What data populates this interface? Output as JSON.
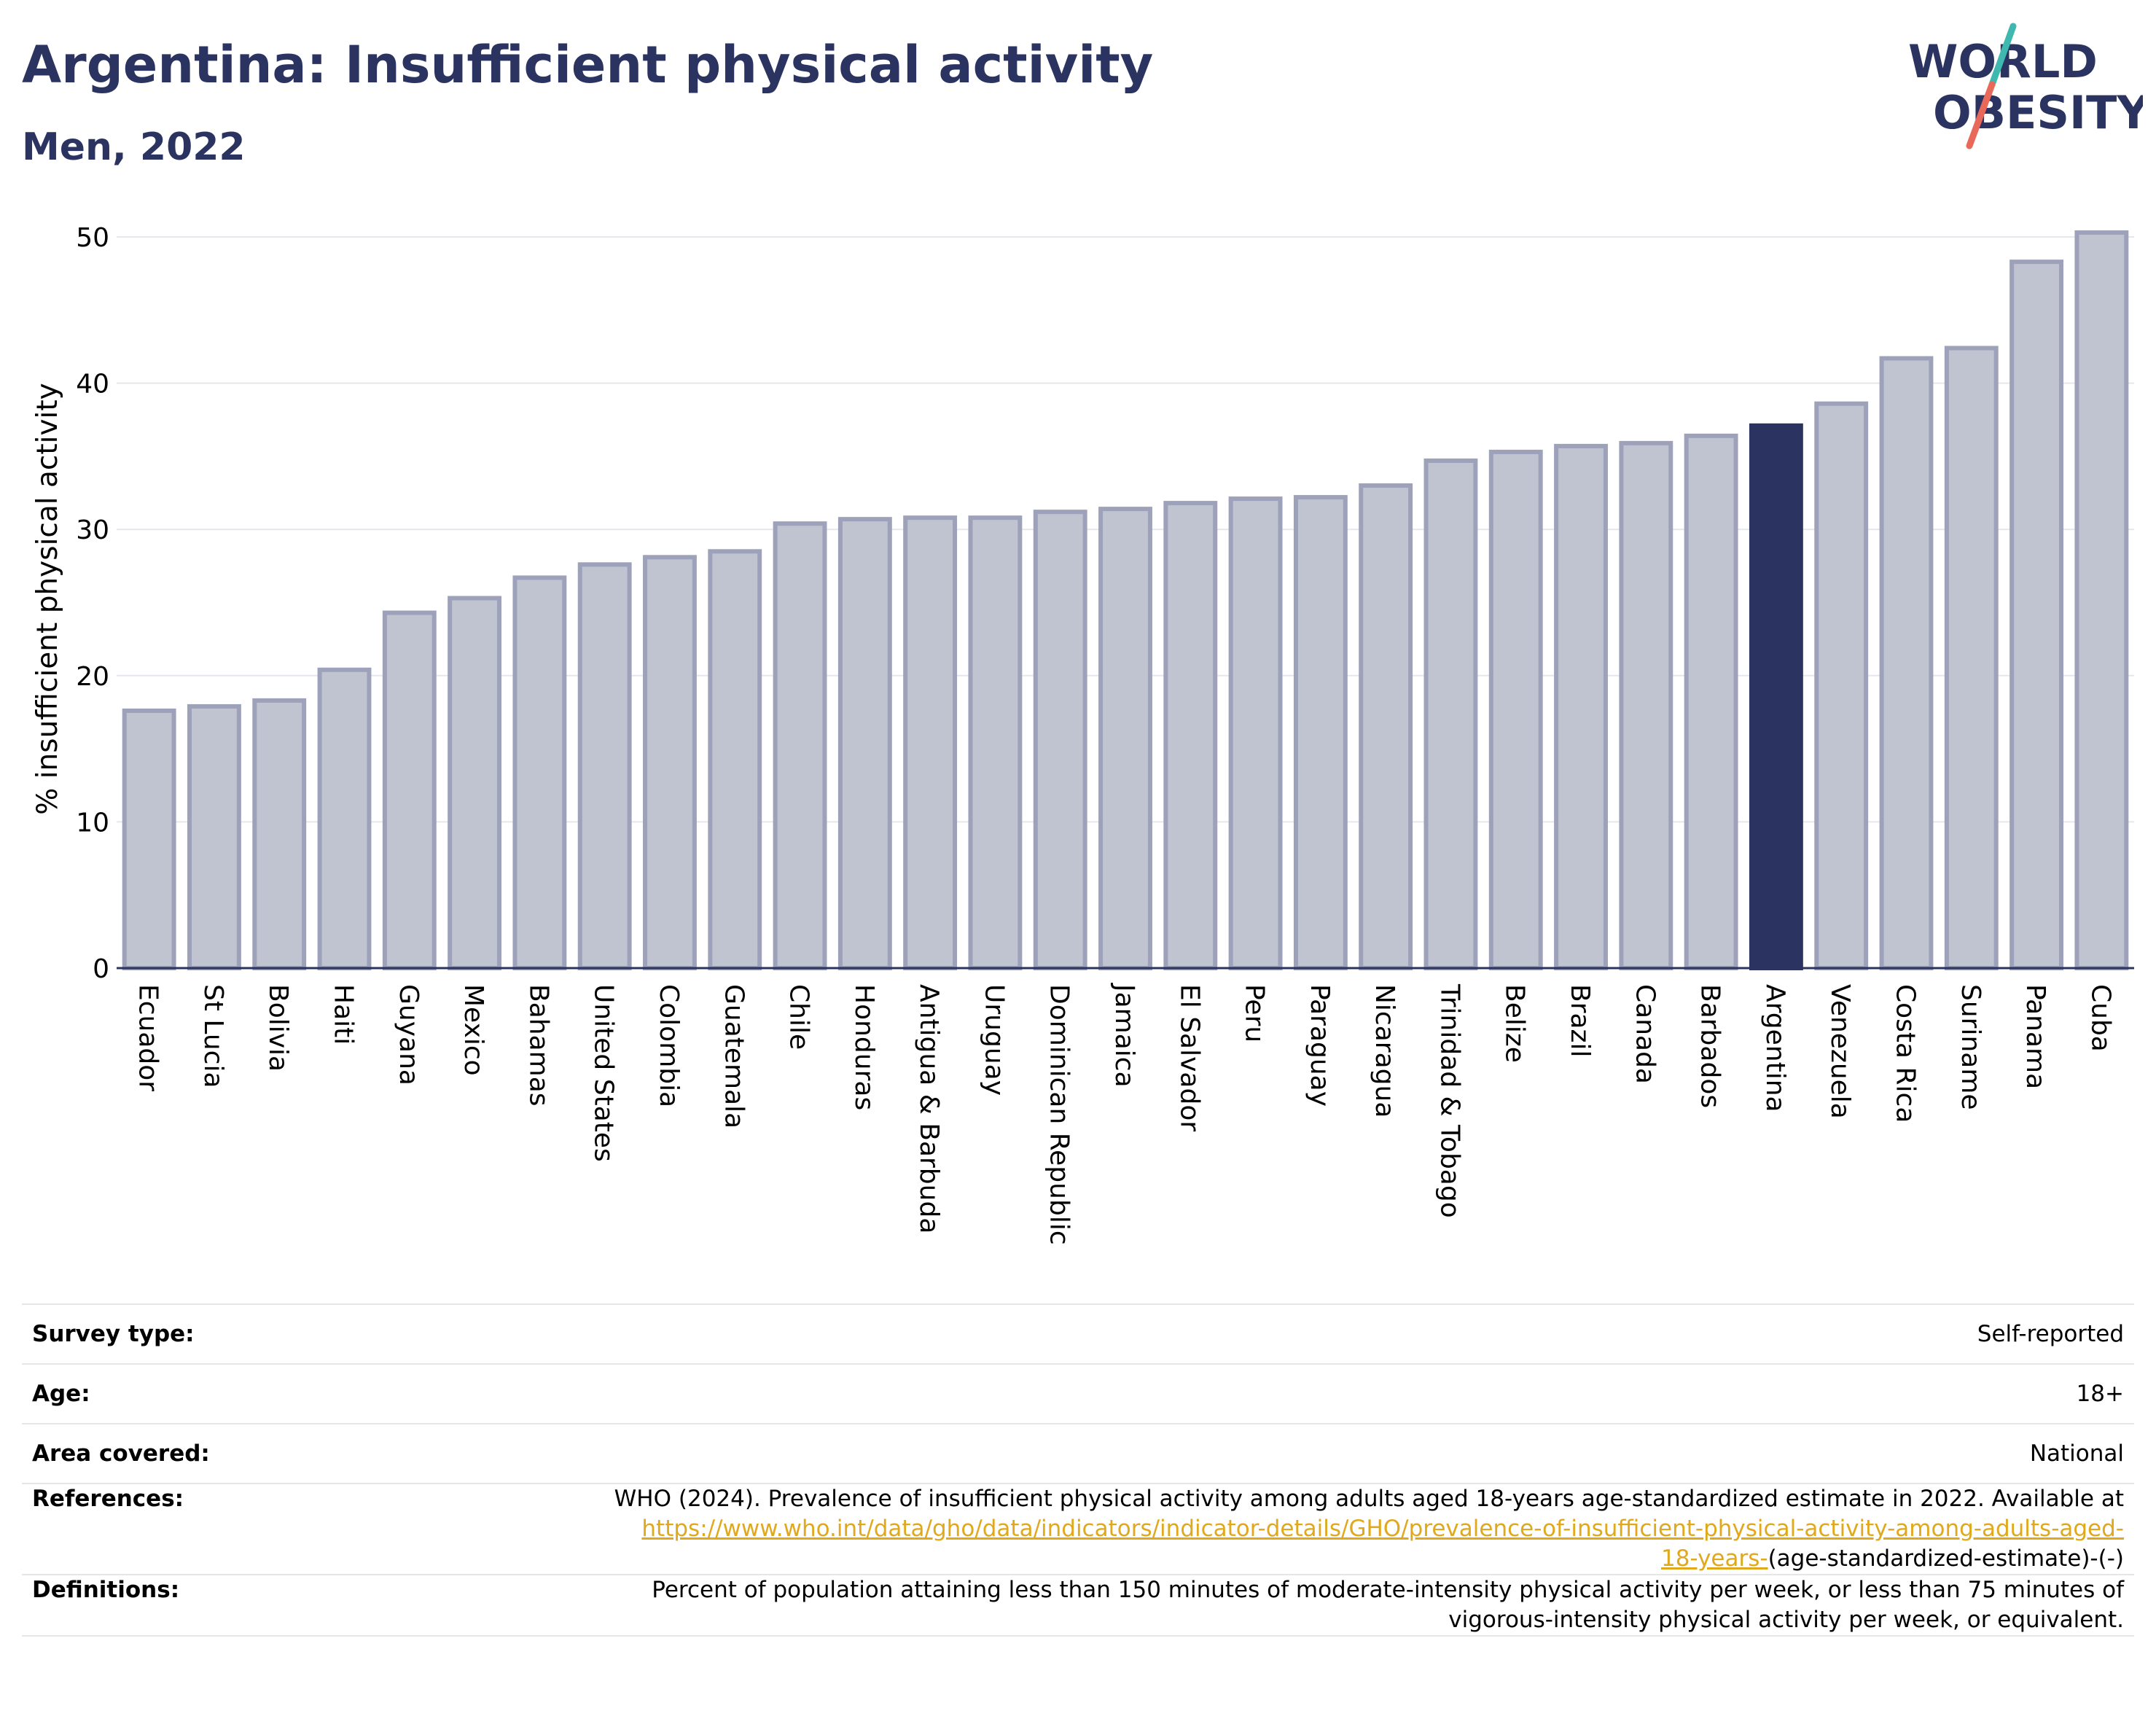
{
  "header": {
    "title": "Argentina: Insufficient physical activity",
    "subtitle": "Men, 2022"
  },
  "logo": {
    "line1": "WORLD",
    "line2": "OBESITY",
    "text_color": "#2b3460",
    "accent_teal": "#3fb8b0",
    "accent_coral": "#e8685a"
  },
  "colors": {
    "highlight": "#2b3460",
    "bar_fill": "#c0c3d0",
    "bar_stroke": "#9da1b9",
    "grid": "#e6e7ec"
  },
  "chart_data": {
    "type": "bar",
    "title": "",
    "ylabel": "% insufficient physical activity",
    "xlabel": "",
    "ylim": [
      0,
      50.5
    ],
    "yticks": [
      0,
      10,
      20,
      30,
      40,
      50
    ],
    "grid": true,
    "highlight": "Argentina",
    "categories": [
      "Ecuador",
      "St Lucia",
      "Bolivia",
      "Haiti",
      "Guyana",
      "Mexico",
      "Bahamas",
      "United States",
      "Colombia",
      "Guatemala",
      "Chile",
      "Honduras",
      "Antigua & Barbuda",
      "Uruguay",
      "Dominican Republic",
      "Jamaica",
      "El Salvador",
      "Peru",
      "Paraguay",
      "Nicaragua",
      "Trinidad & Tobago",
      "Belize",
      "Brazil",
      "Canada",
      "Barbados",
      "Argentina",
      "Venezuela",
      "Costa Rica",
      "Suriname",
      "Panama",
      "Cuba"
    ],
    "values": [
      17.6,
      17.9,
      18.3,
      20.4,
      24.3,
      25.3,
      26.7,
      27.6,
      28.1,
      28.5,
      30.4,
      30.7,
      30.8,
      30.8,
      31.2,
      31.4,
      31.8,
      32.1,
      32.2,
      33.0,
      34.7,
      35.3,
      35.7,
      35.9,
      36.4,
      37.1,
      38.6,
      41.7,
      42.4,
      48.3,
      50.3
    ]
  },
  "info": {
    "survey_type_label": "Survey type:",
    "survey_type_value": "Self-reported",
    "age_label": "Age:",
    "age_value": "18+",
    "area_label": "Area covered:",
    "area_value": "National",
    "references_label": "References:",
    "references_text": "WHO (2024). Prevalence of insufficient physical activity among adults aged 18-years age-standardized estimate in 2022. Available at",
    "references_link_part1": "https://www.who.int/data/gho/data/indicators/indicator-details/GHO/prevalence-of-insufficient-physical-activity-among-adults-aged-",
    "references_link_part2": "18-years-",
    "references_suffix": "(age-standardized-estimate)-(-)",
    "definitions_label": "Definitions:",
    "definitions_line1": "Percent of population attaining less than 150 minutes of moderate-intensity physical activity per week, or less than 75 minutes of",
    "definitions_line2": "vigorous-intensity physical activity per week, or equivalent."
  }
}
